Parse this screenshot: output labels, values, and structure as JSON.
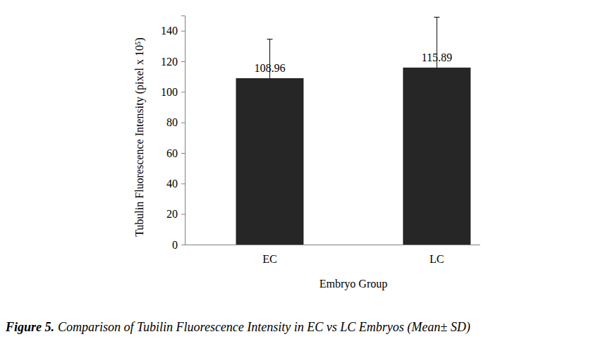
{
  "chart_data": {
    "type": "bar",
    "figure_label": "Figure 5.",
    "title": "Comparison of Tubilin Fluorescence Intensity in EC vs LC Embryos (Mean± SD)",
    "x_label": "Embryo Group",
    "y_label": "Tubulin Fluorescence Intensity (pixel x 10⁵)",
    "categories": [
      "EC",
      "LC"
    ],
    "values": [
      108.96,
      115.89
    ],
    "errors": [
      25.5,
      33
    ],
    "color": "#262626",
    "ylim": [
      0,
      150
    ],
    "yticks": [
      0,
      20,
      40,
      60,
      80,
      100,
      120,
      140
    ],
    "grid": false,
    "data_labels": true
  }
}
